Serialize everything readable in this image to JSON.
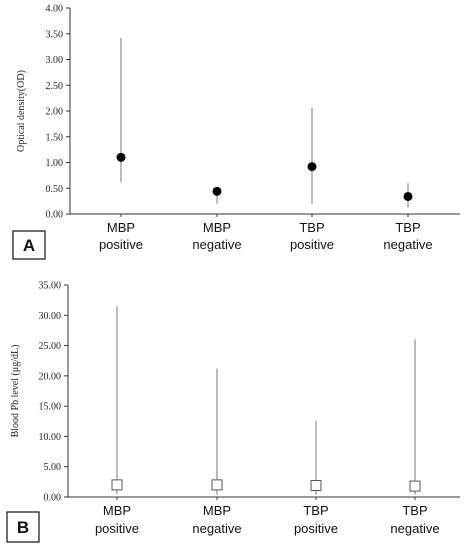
{
  "chart_data": [
    {
      "type": "scatter",
      "panel_label": "A",
      "ylabel": "Optical density(OD)",
      "ylim": [
        0,
        4
      ],
      "yticks": [
        "0.00",
        "0.50",
        "1.00",
        "1.50",
        "2.00",
        "2.50",
        "3.00",
        "3.50",
        "4.00"
      ],
      "categories": [
        [
          "MBP",
          "positive"
        ],
        [
          "MBP",
          "negative"
        ],
        [
          "TBP",
          "positive"
        ],
        [
          "TBP",
          "negative"
        ]
      ],
      "marker": "filled-circle",
      "series": [
        {
          "values": [
            1.1,
            0.44,
            0.92,
            0.34
          ],
          "min": [
            0.62,
            0.2,
            0.2,
            0.12
          ],
          "max": [
            3.42,
            0.5,
            2.06,
            0.6
          ]
        }
      ],
      "grid": false
    },
    {
      "type": "scatter",
      "panel_label": "B",
      "ylabel": "Blood Pb level (μg/dL)",
      "ylim": [
        0,
        35
      ],
      "yticks": [
        "0.00",
        "5.00",
        "10.00",
        "15.00",
        "20.00",
        "25.00",
        "30.00",
        "35.00"
      ],
      "categories": [
        [
          "MBP",
          "positive"
        ],
        [
          "MBP",
          "negative"
        ],
        [
          "TBP",
          "positive"
        ],
        [
          "TBP",
          "negative"
        ]
      ],
      "marker": "open-square",
      "series": [
        {
          "values": [
            2.0,
            2.0,
            1.9,
            1.8
          ],
          "min": [
            0.5,
            0.4,
            0.4,
            0.4
          ],
          "max": [
            31.5,
            21.2,
            12.6,
            26.0
          ]
        }
      ],
      "grid": false
    }
  ]
}
